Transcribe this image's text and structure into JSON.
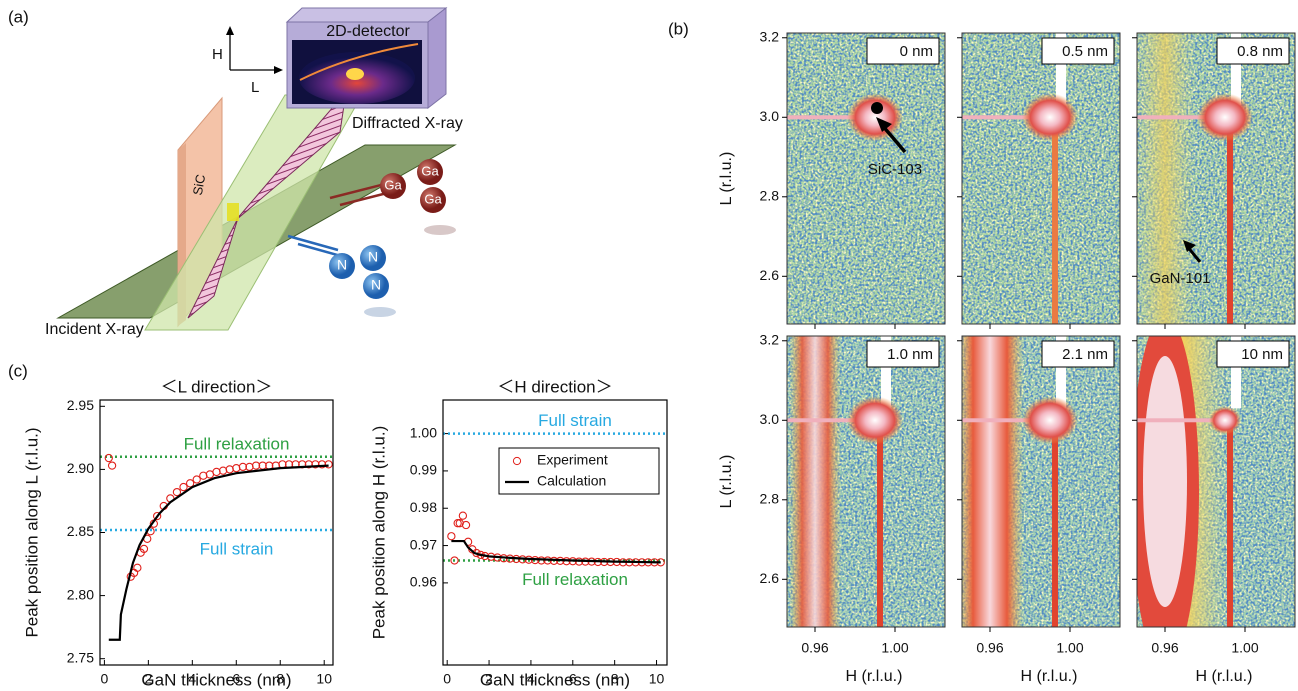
{
  "panel_a": {
    "label": "(a)",
    "axis_h": "H",
    "axis_l": "L",
    "detector": "2D-detector",
    "diffracted": "Diffracted X-ray",
    "incident": "Incident X-ray",
    "substrate": "SiC",
    "ga_atoms": [
      "Ga",
      "Ga",
      "Ga"
    ],
    "n_atoms": [
      "N",
      "N",
      "N"
    ]
  },
  "panel_b": {
    "label": "(b)",
    "xlabel": "H (r.l.u.)",
    "ylabel": "L (r.l.u.)",
    "xlim": [
      0.946,
      1.025
    ],
    "ylim": [
      2.48,
      3.212
    ],
    "xticks": [
      0.96,
      {
        "value": 1,
        "label": "1.00"
      }
    ],
    "yticks": [
      2.6,
      2.8,
      {
        "value": 3,
        "label": "3.0"
      },
      3.2
    ],
    "thickness_labels": [
      "0 nm",
      "0.5 nm",
      "0.8 nm",
      "1.0 nm",
      "2.1 nm",
      "10 nm"
    ],
    "annotations": [
      "SiC-103",
      "GaN-101"
    ]
  },
  "panel_c": {
    "label": "(c)"
  },
  "chart_data": [
    {
      "type": "line",
      "title": "＜L direction＞",
      "xlabel": "GaN thickness (nm)",
      "ylabel": "Peak position along L (r.l.u.)",
      "xlim": [
        -0.2,
        10.4
      ],
      "ylim": [
        2.745,
        2.955
      ],
      "xticks": [
        0,
        2,
        4,
        6,
        8,
        10
      ],
      "yticks": [
        2.75,
        {
          "value": 2.8,
          "label": "2.80"
        },
        2.85,
        {
          "value": 2.9,
          "label": "2.90"
        },
        2.95
      ],
      "series": [
        {
          "style": "markers",
          "color": "#e0201b",
          "x": [
            0.2,
            0.35,
            1.2,
            1.35,
            1.5,
            1.65,
            1.8,
            1.95,
            2.1,
            2.25,
            2.4,
            2.7,
            3.0,
            3.3,
            3.6,
            3.9,
            4.2,
            4.5,
            4.8,
            5.1,
            5.4,
            5.7,
            6.0,
            6.3,
            6.6,
            6.9,
            7.2,
            7.5,
            7.8,
            8.1,
            8.4,
            8.7,
            9.0,
            9.3,
            9.6,
            9.9,
            10.2
          ],
          "values": [
            2.909,
            2.903,
            2.815,
            2.818,
            2.822,
            2.834,
            2.837,
            2.845,
            2.851,
            2.857,
            2.863,
            2.871,
            2.877,
            2.882,
            2.886,
            2.889,
            2.892,
            2.895,
            2.896,
            2.898,
            2.899,
            2.9,
            2.901,
            2.902,
            2.902,
            2.903,
            2.903,
            2.903,
            2.903,
            2.904,
            2.904,
            2.904,
            2.904,
            2.904,
            2.904,
            2.904,
            2.904
          ]
        },
        {
          "style": "line",
          "color": "#000000",
          "x": [
            0.2,
            0.7,
            0.75,
            1.0,
            1.3,
            1.6,
            2.0,
            2.5,
            3.0,
            4.0,
            5.0,
            6.0,
            8.0,
            10.2
          ],
          "values": [
            2.765,
            2.765,
            2.785,
            2.805,
            2.826,
            2.84,
            2.853,
            2.865,
            2.874,
            2.886,
            2.893,
            2.897,
            2.901,
            2.903
          ]
        }
      ],
      "reference_lines": [
        {
          "label": "Full relaxation",
          "value": 2.91,
          "color": "#2ea043"
        },
        {
          "label": "Full strain",
          "value": 2.852,
          "color": "#27a9e1"
        }
      ]
    },
    {
      "type": "line",
      "title": "＜H direction＞",
      "xlabel": "GaN thickness (nm)",
      "ylabel": "Peak position along H (r.l.u.)",
      "xlim": [
        -0.2,
        10.5
      ],
      "ylim": [
        0.938,
        1.009
      ],
      "xticks": [
        0,
        2,
        4,
        6,
        8,
        10
      ],
      "yticks": [
        0.96,
        0.97,
        0.98,
        0.99,
        {
          "value": 1,
          "label": "1.00"
        }
      ],
      "legend": "upper right",
      "series": [
        {
          "name": "Experiment",
          "style": "markers",
          "color": "#e0201b",
          "x": [
            0.2,
            0.35,
            0.5,
            0.6,
            0.75,
            0.9,
            1.0,
            1.2,
            1.4,
            1.6,
            1.8,
            2.1,
            2.4,
            2.7,
            3.0,
            3.3,
            3.6,
            3.9,
            4.2,
            4.5,
            4.8,
            5.1,
            5.4,
            5.7,
            6.0,
            6.3,
            6.6,
            6.9,
            7.2,
            7.5,
            7.8,
            8.1,
            8.4,
            8.7,
            9.0,
            9.3,
            9.6,
            9.9,
            10.2
          ],
          "values": [
            0.9725,
            0.966,
            0.976,
            0.976,
            0.978,
            0.9755,
            0.971,
            0.969,
            0.968,
            0.9675,
            0.9672,
            0.967,
            0.9668,
            0.9666,
            0.9665,
            0.9664,
            0.9663,
            0.9662,
            0.9661,
            0.966,
            0.966,
            0.9659,
            0.9659,
            0.9658,
            0.9658,
            0.9657,
            0.9657,
            0.9657,
            0.9656,
            0.9656,
            0.9656,
            0.9656,
            0.9655,
            0.9655,
            0.9655,
            0.9655,
            0.9655,
            0.9655,
            0.9655
          ]
        },
        {
          "name": "Calculation",
          "style": "line",
          "color": "#000000",
          "x": [
            0.2,
            0.8,
            1.0,
            1.3,
            1.6,
            2.0,
            3.0,
            4.0,
            6.0,
            8.0,
            10.2
          ],
          "values": [
            0.9712,
            0.9712,
            0.9695,
            0.968,
            0.9675,
            0.9671,
            0.9667,
            0.9664,
            0.966,
            0.9657,
            0.9655
          ]
        }
      ],
      "reference_lines": [
        {
          "label": "Full strain",
          "value": 1,
          "color": "#27a9e1"
        },
        {
          "label": "Full relaxation",
          "value": 0.966,
          "color": "#2ea043"
        }
      ]
    }
  ]
}
